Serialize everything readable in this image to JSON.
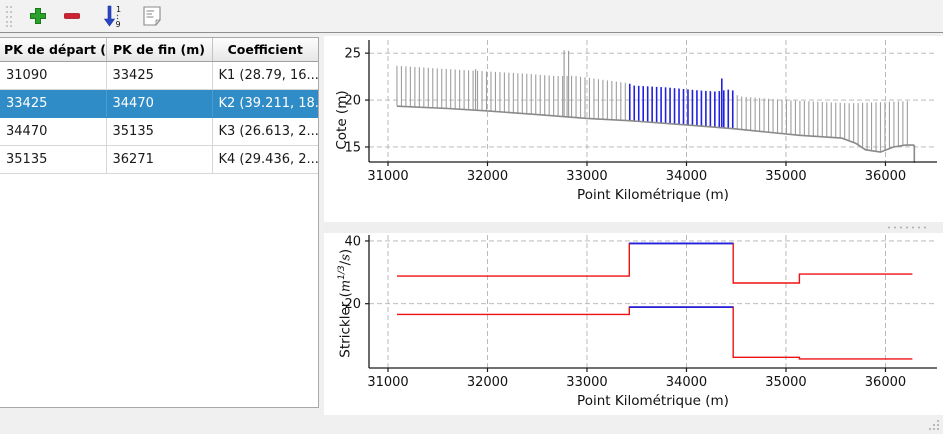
{
  "toolbar": {
    "buttons": [
      {
        "name": "add",
        "icon": "plus-icon",
        "color": "#2ca02c"
      },
      {
        "name": "remove",
        "icon": "minus-icon",
        "color": "#cf2233"
      },
      {
        "name": "sort",
        "icon": "sort-numeric-icon",
        "color": "#2244bb",
        "sup": "1",
        "sub": "9"
      },
      {
        "name": "notes",
        "icon": "document-icon",
        "color": "#8a8a8a"
      }
    ]
  },
  "table": {
    "columns": [
      "PK de départ (m)",
      "PK de fin (m)",
      "Coefficient"
    ],
    "rows": [
      [
        "31090",
        "33425",
        "K1 (28.79, 16...."
      ],
      [
        "33425",
        "34470",
        "K2 (39.211, 18..."
      ],
      [
        "34470",
        "35135",
        "K3 (26.613, 2...."
      ],
      [
        "35135",
        "36271",
        "K4 (29.436, 2...."
      ]
    ],
    "selected_row": 1,
    "selection_color": "#308cc6"
  },
  "chart_data": [
    {
      "type": "profile-sections",
      "title": "",
      "xlabel": "Point Kilométrique (m)",
      "ylabel": "Cote (m)",
      "xlim": [
        30809,
        36518
      ],
      "ylim": [
        13.4,
        26.4
      ],
      "xticks": [
        31000,
        32000,
        33000,
        34000,
        35000,
        36000
      ],
      "yticks": [
        15,
        20,
        25
      ],
      "grid": true,
      "section_start": 31090,
      "section_end": 36260,
      "section_spacing": 45,
      "selected_range": [
        33425,
        34470
      ],
      "bottom_profile": [
        [
          31090,
          19.35
        ],
        [
          31600,
          19.1
        ],
        [
          32000,
          18.85
        ],
        [
          32500,
          18.45
        ],
        [
          33000,
          18.05
        ],
        [
          33425,
          17.8
        ],
        [
          34000,
          17.35
        ],
        [
          34470,
          16.95
        ],
        [
          34800,
          16.6
        ],
        [
          35135,
          16.25
        ],
        [
          35560,
          15.95
        ],
        [
          35700,
          15.4
        ],
        [
          35800,
          14.7
        ],
        [
          35950,
          14.45
        ],
        [
          36080,
          15.0
        ],
        [
          36200,
          15.2
        ],
        [
          36290,
          15.2
        ]
      ],
      "top_profile": [
        [
          31090,
          23.65
        ],
        [
          31600,
          23.3
        ],
        [
          32000,
          23.05
        ],
        [
          32400,
          22.8
        ],
        [
          32700,
          22.55
        ],
        [
          32860,
          22.6
        ],
        [
          33200,
          22.1
        ],
        [
          33420,
          21.8
        ],
        [
          33460,
          21.55
        ],
        [
          33800,
          21.35
        ],
        [
          34100,
          21.05
        ],
        [
          34300,
          20.9
        ],
        [
          34440,
          21.15
        ],
        [
          34470,
          21.0
        ],
        [
          34520,
          20.4
        ],
        [
          35000,
          20.0
        ],
        [
          35350,
          19.8
        ],
        [
          35650,
          19.65
        ],
        [
          36000,
          19.8
        ],
        [
          36290,
          19.9
        ]
      ],
      "spikes": [
        [
          31880,
          23.3
        ],
        [
          32770,
          25.3
        ],
        [
          32815,
          25.25
        ],
        [
          34355,
          22.3
        ]
      ],
      "end_drop": [
        36290,
        15.2,
        13.3
      ],
      "colors": {
        "section": "#9e9e9e",
        "baseline": "#8a8a8a",
        "selected": "#2222dd"
      }
    },
    {
      "type": "step",
      "title": "",
      "xlabel": "Point Kilométrique (m)",
      "ylabel_parts": {
        "pre": "Strickler (",
        "var1": "m",
        "sup": "1/3",
        "post": "/",
        "var2": "s",
        "close": ")"
      },
      "xlim": [
        30809,
        36518
      ],
      "ylim": [
        -0.5,
        41.9
      ],
      "xticks": [
        31000,
        32000,
        33000,
        34000,
        35000,
        36000
      ],
      "yticks": [
        20,
        40
      ],
      "grid": true,
      "segments": [
        {
          "label": "K1",
          "from": 31090,
          "to": 33425,
          "major": 28.79,
          "minor": 16.6,
          "selected": false
        },
        {
          "label": "K2",
          "from": 33425,
          "to": 34470,
          "major": 39.211,
          "minor": 18.9,
          "selected": true
        },
        {
          "label": "K3",
          "from": 34470,
          "to": 35135,
          "major": 26.613,
          "minor": 2.9,
          "selected": false
        },
        {
          "label": "K4",
          "from": 35135,
          "to": 36271,
          "major": 29.436,
          "minor": 2.4,
          "selected": false
        }
      ],
      "colors": {
        "line": "#ee1111",
        "selected": "#2222dd"
      }
    }
  ],
  "colors": {
    "grid": "#b3b3b3",
    "spine": "#1a1a1a",
    "toolbar_separator": "#8f8f8f"
  }
}
